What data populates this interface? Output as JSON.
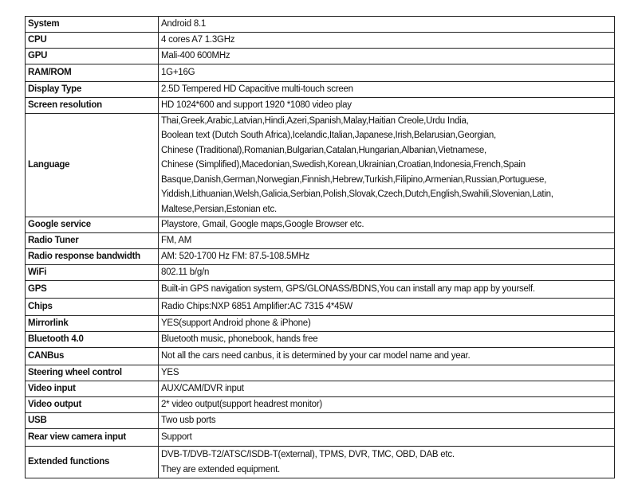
{
  "specs": [
    {
      "label": "System",
      "value": [
        "Android 8.1"
      ]
    },
    {
      "label": "CPU",
      "value": [
        "4 cores A7 1.3GHz"
      ]
    },
    {
      "label": "GPU",
      "value": [
        "Mali-400 600MHz"
      ]
    },
    {
      "label": "RAM/ROM",
      "value": [
        "1G+16G"
      ]
    },
    {
      "label": "Display Type",
      "value": [
        "2.5D Tempered HD Capacitive multi-touch screen"
      ]
    },
    {
      "label": "Screen resolution",
      "value": [
        "HD 1024*600 and support 1920 *1080 video play"
      ]
    },
    {
      "label": "Language",
      "value": [
        "Thai,Greek,Arabic,Latvian,Hindi,Azeri,Spanish,Malay,Haitian Creole,Urdu India,",
        "Boolean text (Dutch South Africa),Icelandic,Italian,Japanese,Irish,Belarusian,Georgian,",
        "Chinese (Traditional),Romanian,Bulgarian,Catalan,Hungarian,Albanian,Vietnamese,",
        "Chinese (Simplified),Macedonian,Swedish,Korean,Ukrainian,Croatian,Indonesia,French,Spain",
        "Basque,Danish,German,Norwegian,Finnish,Hebrew,Turkish,Filipino,Armenian,Russian,Portuguese,",
        "Yiddish,Lithuanian,Welsh,Galicia,Serbian,Polish,Slovak,Czech,Dutch,English,Swahili,Slovenian,Latin,",
        "Maltese,Persian,Estonian etc."
      ]
    },
    {
      "label": "Google service",
      "value": [
        "Playstore, Gmail, Google maps,Google Browser etc."
      ]
    },
    {
      "label": "Radio Tuner",
      "value": [
        "FM, AM"
      ]
    },
    {
      "label": "Radio response bandwidth",
      "value": [
        "AM: 520-1700 Hz  FM: 87.5-108.5MHz"
      ]
    },
    {
      "label": "WiFi",
      "value": [
        "802.11 b/g/n"
      ]
    },
    {
      "label": "GPS",
      "value": [
        "Built-in GPS navigation system, GPS/GLONASS/BDNS,You can install any map app by yourself."
      ]
    },
    {
      "label": "Chips",
      "value": [
        "Radio Chips:NXP 6851  Amplifier:AC 7315 4*45W"
      ]
    },
    {
      "label": "Mirrorlink",
      "value": [
        "YES(support Android phone & iPhone)"
      ]
    },
    {
      "label": "Bluetooth 4.0",
      "value": [
        "Bluetooth music, phonebook, hands free"
      ]
    },
    {
      "label": "CANBus",
      "value": [
        "Not all the cars need canbus, it is determined by your car model name and year."
      ]
    },
    {
      "label": "Steering wheel control",
      "value": [
        "YES"
      ]
    },
    {
      "label": "Video input",
      "value": [
        "AUX/CAM/DVR input"
      ]
    },
    {
      "label": "Video output",
      "value": [
        "2* video output(support headrest monitor)"
      ]
    },
    {
      "label": "USB",
      "value": [
        "Two usb ports"
      ]
    },
    {
      "label": "Rear view camera input",
      "value": [
        "Support"
      ]
    },
    {
      "label": "Extended functions",
      "value": [
        "DVB-T/DVB-T2/ATSC/ISDB-T(external),  TPMS, DVR, TMC, OBD, DAB etc.",
        "They are extended equipment."
      ]
    }
  ]
}
